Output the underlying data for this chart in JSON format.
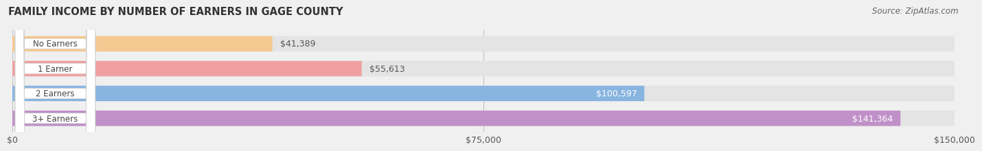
{
  "title": "FAMILY INCOME BY NUMBER OF EARNERS IN GAGE COUNTY",
  "source": "Source: ZipAtlas.com",
  "categories": [
    "No Earners",
    "1 Earner",
    "2 Earners",
    "3+ Earners"
  ],
  "values": [
    41389,
    55613,
    100597,
    141364
  ],
  "bar_colors": [
    "#f5c992",
    "#f0a0a0",
    "#88b4e0",
    "#c090c8"
  ],
  "label_colors": [
    "#333333",
    "#333333",
    "#ffffff",
    "#ffffff"
  ],
  "max_value": 150000,
  "background_color": "#f0f0f0",
  "bar_background": "#e4e4e4",
  "tick_labels": [
    "$0",
    "$75,000",
    "$150,000"
  ],
  "pill_rounding": 1500
}
